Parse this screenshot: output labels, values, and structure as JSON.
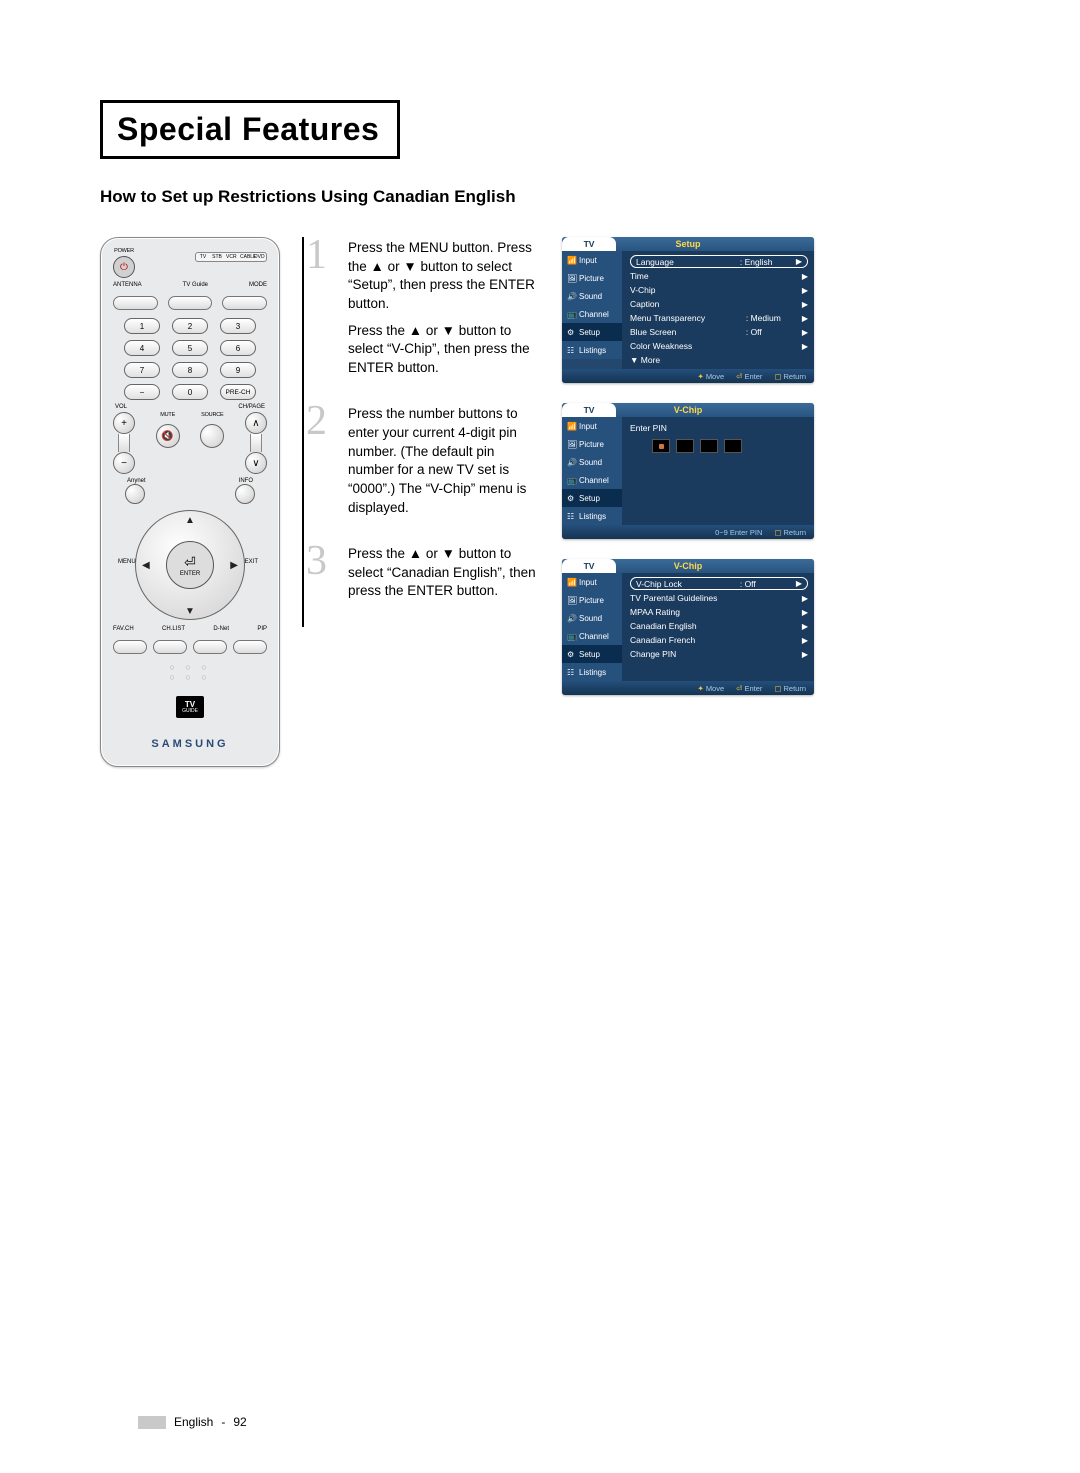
{
  "chapter_title": "Special Features",
  "section_title": "How to Set up Restrictions Using Canadian English",
  "page_footer": {
    "lang": "English",
    "num": "92"
  },
  "remote": {
    "top_labels": {
      "power": "POWER",
      "mode_strip": [
        "TV",
        "STB",
        "VCR",
        "CABLE",
        "DVD"
      ]
    },
    "row2_labels": [
      "ANTENNA",
      "TV Guide",
      "MODE"
    ],
    "numpad": [
      "1",
      "2",
      "3",
      "4",
      "5",
      "6",
      "7",
      "8",
      "9",
      "−",
      "0",
      "PRE-CH"
    ],
    "vol_ch_labels": [
      "VOL",
      "CH/PAGE"
    ],
    "mid_labels": [
      "MUTE",
      "SOURCE"
    ],
    "anynet_info": [
      "Anynet",
      "INFO"
    ],
    "nav": {
      "menu": "MENU",
      "exit": "EXIT",
      "enter_icon": "⏎",
      "enter_label": "ENTER"
    },
    "bottom_pill_labels": [
      "FAV.CH",
      "CH.LIST",
      "D-Net",
      "PIP"
    ],
    "tvguide": {
      "main": "TV",
      "sub": "GUIDE"
    },
    "brand": "SAMSUNG",
    "colors": {
      "body": "#e9eaeb",
      "brand": "#2b4a7a"
    }
  },
  "steps": [
    {
      "num": "1",
      "paras": [
        "Press the MENU button. Press the ▲ or ▼ button to select “Setup”, then press the ENTER button.",
        "Press the ▲ or ▼ button to select “V-Chip”, then press the ENTER button."
      ]
    },
    {
      "num": "2",
      "paras": [
        "Press the number buttons to enter your current 4-digit pin number.\n(The default pin number for a new TV set is “0000”.) The “V-Chip” menu is displayed."
      ]
    },
    {
      "num": "3",
      "paras": [
        "Press the ▲ or ▼ button to select “Canadian English”, then press the ENTER button."
      ]
    }
  ],
  "osd_side_items": [
    "Input",
    "Picture",
    "Sound",
    "Channel",
    "Setup",
    "Listings"
  ],
  "osd_panels": [
    {
      "title": "Setup",
      "active_side_index": 4,
      "rows": [
        {
          "label": "Language",
          "value": ": English",
          "arrow": true,
          "selected": true
        },
        {
          "label": "Time",
          "value": "",
          "arrow": true
        },
        {
          "label": "V-Chip",
          "value": "",
          "arrow": true
        },
        {
          "label": "Caption",
          "value": "",
          "arrow": true
        },
        {
          "label": "Menu Transparency",
          "value": ": Medium",
          "arrow": true
        },
        {
          "label": "Blue Screen",
          "value": ": Off",
          "arrow": true
        },
        {
          "label": "Color Weakness",
          "value": "",
          "arrow": true
        },
        {
          "label": "▼ More",
          "value": "",
          "arrow": false
        }
      ],
      "footer": [
        {
          "icon": "✦",
          "text": "Move"
        },
        {
          "icon": "⏎",
          "text": "Enter"
        },
        {
          "icon": "▢",
          "text": "Return"
        }
      ]
    },
    {
      "title": "V-Chip",
      "active_side_index": 4,
      "pin_prompt": "Enter PIN",
      "footer": [
        {
          "icon": "",
          "text": "0~9 Enter PIN"
        },
        {
          "icon": "▢",
          "text": "Return"
        }
      ]
    },
    {
      "title": "V-Chip",
      "active_side_index": 4,
      "rows": [
        {
          "label": "V-Chip Lock",
          "value": ": Off",
          "arrow": true,
          "selected": true
        },
        {
          "label": "TV Parental Guidelines",
          "value": "",
          "arrow": true
        },
        {
          "label": "MPAA Rating",
          "value": "",
          "arrow": true
        },
        {
          "label": "Canadian English",
          "value": "",
          "arrow": true
        },
        {
          "label": "Canadian French",
          "value": "",
          "arrow": true
        },
        {
          "label": "Change PIN",
          "value": "",
          "arrow": true
        }
      ],
      "footer": [
        {
          "icon": "✦",
          "text": "Move"
        },
        {
          "icon": "⏎",
          "text": "Enter"
        },
        {
          "icon": "▢",
          "text": "Return"
        }
      ]
    }
  ],
  "osd_style": {
    "bg": "#23476d",
    "main_bg": "#1b3b5e",
    "side_bg": "#27517d",
    "side_active_bg": "#0a2c4f",
    "title_color": "#ffd84a",
    "footer_color": "#a8c7e6",
    "footer_icon_color": "#f2c443"
  }
}
